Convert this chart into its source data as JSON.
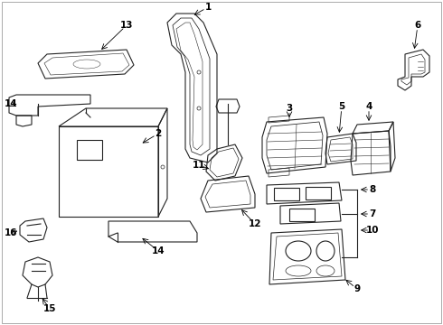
{
  "background_color": "#ffffff",
  "line_color": "#222222",
  "label_color": "#000000",
  "figsize": [
    4.9,
    3.6
  ],
  "dpi": 100
}
